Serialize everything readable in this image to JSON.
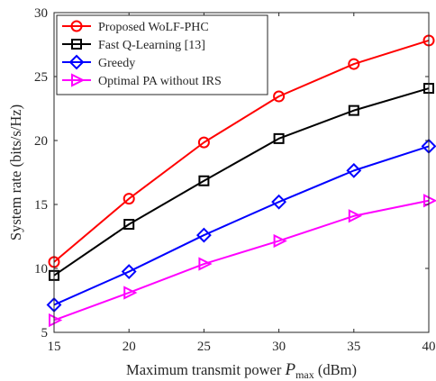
{
  "chart_data": {
    "type": "line",
    "x": [
      15,
      20,
      25,
      30,
      35,
      40
    ],
    "xlim": [
      15,
      40
    ],
    "ylim": [
      5,
      30
    ],
    "xticks": [
      "15",
      "20",
      "25",
      "30",
      "35",
      "40"
    ],
    "yticks": [
      "5",
      "10",
      "15",
      "20",
      "25",
      "30"
    ],
    "xlabel": {
      "prefix": "Maximum transmit power ",
      "symbol": "P",
      "subscript": "max",
      "unit": " (dBm)"
    },
    "ylabel": "System rate (bits/s/Hz)",
    "grid": false,
    "legend_position": "top-left",
    "series": [
      {
        "name": "Proposed WoLF-PHC",
        "color": "#ff0000",
        "marker": "circle",
        "values": [
          10.5,
          15.45,
          19.85,
          23.45,
          25.98,
          27.82
        ]
      },
      {
        "name": "Fast Q-Learning [13]",
        "color": "#000000",
        "marker": "square",
        "values": [
          9.45,
          13.45,
          16.85,
          20.15,
          22.35,
          24.08
        ]
      },
      {
        "name": "Greedy",
        "color": "#0000ff",
        "marker": "diamond",
        "values": [
          7.15,
          9.75,
          12.6,
          15.2,
          17.65,
          19.55
        ]
      },
      {
        "name": "Optimal PA without IRS",
        "color": "#ff00ff",
        "marker": "triangle-right",
        "values": [
          5.95,
          8.1,
          10.35,
          12.15,
          14.1,
          15.3
        ]
      }
    ]
  }
}
